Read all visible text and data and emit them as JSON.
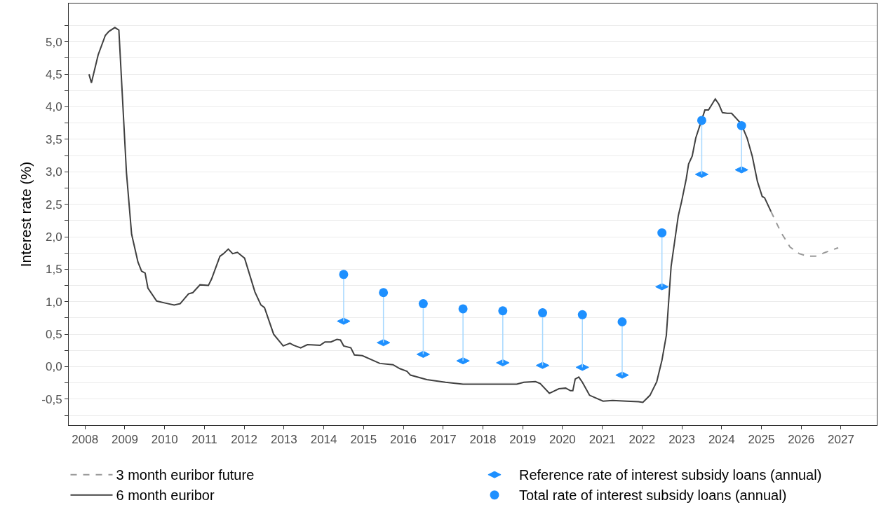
{
  "chart_data": {
    "type": "line",
    "ylabel": "Interest rate (%)",
    "xlim": [
      2007.59,
      2027.9
    ],
    "xticks": [
      2008,
      2009,
      2010,
      2011,
      2012,
      2013,
      2014,
      2015,
      2016,
      2017,
      2018,
      2019,
      2020,
      2021,
      2022,
      2023,
      2024,
      2025,
      2026,
      2027
    ],
    "ylim": [
      -0.9,
      5.59
    ],
    "yticks": [
      {
        "value": -0.75,
        "label": null
      },
      {
        "value": -0.5,
        "label": "-0,5"
      },
      {
        "value": -0.25,
        "label": null
      },
      {
        "value": 0,
        "label": "0,0"
      },
      {
        "value": 0.25,
        "label": null
      },
      {
        "value": 0.5,
        "label": "0,5"
      },
      {
        "value": 0.75,
        "label": null
      },
      {
        "value": 1,
        "label": "1,0"
      },
      {
        "value": 1.25,
        "label": null
      },
      {
        "value": 1.5,
        "label": "1,5"
      },
      {
        "value": 1.75,
        "label": null
      },
      {
        "value": 2,
        "label": "2,0"
      },
      {
        "value": 2.25,
        "label": null
      },
      {
        "value": 2.5,
        "label": "2,5"
      },
      {
        "value": 2.75,
        "label": null
      },
      {
        "value": 3,
        "label": "3,0"
      },
      {
        "value": 3.25,
        "label": null
      },
      {
        "value": 3.5,
        "label": "3,5"
      },
      {
        "value": 3.75,
        "label": null
      },
      {
        "value": 4,
        "label": "4,0"
      },
      {
        "value": 4.25,
        "label": null
      },
      {
        "value": 4.5,
        "label": "4,5"
      },
      {
        "value": 4.75,
        "label": null
      },
      {
        "value": 5,
        "label": "5,0"
      },
      {
        "value": 5.25,
        "label": null
      }
    ],
    "grid": "y",
    "legend": "bottom",
    "series": [
      {
        "name": "3 month euribor future",
        "color": "#999999",
        "line_style": "dashed",
        "marker": "none",
        "x": [
          2025.24,
          2025.49,
          2025.72,
          2025.95,
          2026.16,
          2026.36,
          2026.61,
          2026.93
        ],
        "values": [
          2.39,
          2.07,
          1.84,
          1.74,
          1.7,
          1.7,
          1.76,
          1.83
        ]
      },
      {
        "name": "Reference rate of interest subsidy loans (annual)",
        "type": "scatter",
        "color": "#1e90ff",
        "x": [
          2014.5,
          2015.5,
          2016.5,
          2017.5,
          2018.5,
          2019.5,
          2020.5,
          2021.5,
          2022.5,
          2023.5,
          2024.5
        ],
        "values": [
          0.7,
          0.37,
          0.19,
          0.09,
          0.06,
          0.02,
          -0.01,
          -0.13,
          1.23,
          2.96,
          3.03
        ]
      },
      {
        "name": "6 month euribor",
        "color": "#404040",
        "line_style": "solid",
        "marker": "none",
        "x": [
          2008.1,
          2008.16,
          2008.33,
          2008.51,
          2008.6,
          2008.75,
          2008.85,
          2009.04,
          2009.17,
          2009.33,
          2009.42,
          2009.51,
          2009.58,
          2009.8,
          2010.01,
          2010.24,
          2010.39,
          2010.6,
          2010.71,
          2010.89,
          2011.1,
          2011.18,
          2011.39,
          2011.48,
          2011.6,
          2011.71,
          2011.83,
          2012.01,
          2012.27,
          2012.42,
          2012.51,
          2012.74,
          2012.98,
          2013.15,
          2013.24,
          2013.42,
          2013.59,
          2013.91,
          2014.03,
          2014.18,
          2014.33,
          2014.42,
          2014.5,
          2014.68,
          2014.77,
          2014.97,
          2015.41,
          2015.74,
          2015.91,
          2016.09,
          2016.18,
          2016.59,
          2017.06,
          2017.5,
          2018.85,
          2019.03,
          2019.32,
          2019.44,
          2019.67,
          2019.91,
          2020.08,
          2020.2,
          2020.26,
          2020.32,
          2020.41,
          2020.5,
          2020.68,
          2021.02,
          2021.26,
          2021.61,
          2021.91,
          2022.02,
          2022.2,
          2022.37,
          2022.5,
          2022.61,
          2022.73,
          2022.91,
          2022.99,
          2023.11,
          2023.17,
          2023.26,
          2023.35,
          2023.58,
          2023.67,
          2023.84,
          2023.93,
          2024.02,
          2024.14,
          2024.25,
          2024.49,
          2024.64,
          2024.77,
          2024.9,
          2025.02,
          2025.08,
          2025.24
        ],
        "values": [
          4.5,
          4.37,
          4.8,
          5.1,
          5.16,
          5.22,
          5.18,
          2.99,
          2.04,
          1.61,
          1.47,
          1.44,
          1.21,
          1.01,
          0.98,
          0.95,
          0.97,
          1.12,
          1.14,
          1.26,
          1.25,
          1.35,
          1.7,
          1.74,
          1.81,
          1.74,
          1.76,
          1.67,
          1.15,
          0.95,
          0.91,
          0.5,
          0.32,
          0.36,
          0.33,
          0.29,
          0.34,
          0.33,
          0.38,
          0.38,
          0.42,
          0.41,
          0.32,
          0.29,
          0.18,
          0.17,
          0.05,
          0.03,
          -0.03,
          -0.07,
          -0.13,
          -0.2,
          -0.24,
          -0.27,
          -0.27,
          -0.24,
          -0.23,
          -0.26,
          -0.41,
          -0.34,
          -0.33,
          -0.37,
          -0.37,
          -0.19,
          -0.16,
          -0.24,
          -0.44,
          -0.53,
          -0.52,
          -0.53,
          -0.54,
          -0.55,
          -0.44,
          -0.23,
          0.1,
          0.48,
          1.54,
          2.32,
          2.53,
          2.89,
          3.12,
          3.24,
          3.52,
          3.95,
          3.95,
          4.12,
          4.04,
          3.91,
          3.9,
          3.9,
          3.74,
          3.52,
          3.24,
          2.85,
          2.62,
          2.6,
          2.39
        ]
      },
      {
        "name": "Total rate of interest subsidy loans (annual)",
        "type": "scatter",
        "color": "#1e90ff",
        "marker": "circle",
        "x": [
          2014.5,
          2015.5,
          2016.5,
          2017.5,
          2018.5,
          2019.5,
          2020.5,
          2021.5,
          2022.5,
          2023.5,
          2024.5
        ],
        "values": [
          1.42,
          1.14,
          0.97,
          0.89,
          0.86,
          0.83,
          0.8,
          0.69,
          2.06,
          3.79,
          3.71
        ],
        "errors": [
          [
            0.7,
            1.42
          ],
          [
            0.37,
            1.14
          ],
          [
            0.19,
            0.97
          ],
          [
            0.09,
            0.89
          ],
          [
            0.06,
            0.86
          ],
          [
            0.02,
            0.83
          ],
          [
            -0.01,
            0.8
          ],
          [
            -0.13,
            0.69
          ],
          [
            1.23,
            2.06
          ],
          [
            2.96,
            3.79
          ],
          [
            3.03,
            3.71
          ]
        ]
      }
    ]
  }
}
